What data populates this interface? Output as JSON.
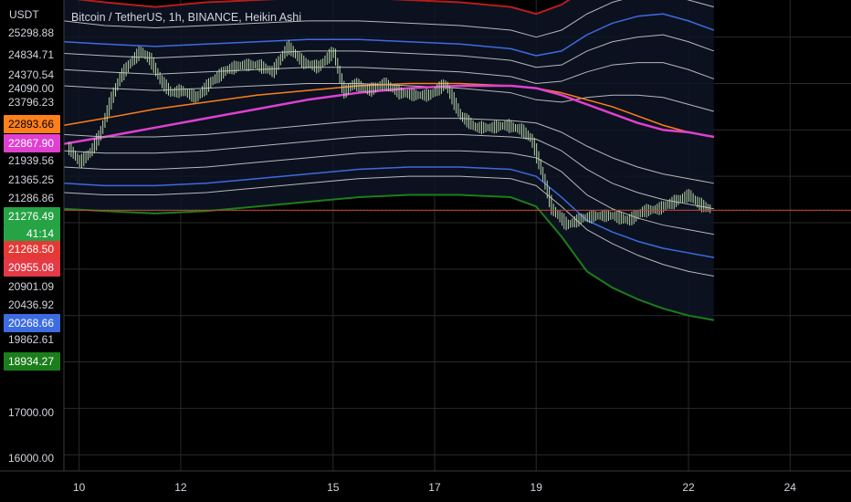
{
  "header": {
    "symbol": "Bitcoin / TetherUS",
    "interval": "1h",
    "exchange": "BINANCE",
    "chart_style": "Heikin Ashi",
    "currency": "USDT"
  },
  "colors": {
    "background": "#000000",
    "grid": "#2a2a2a",
    "axis_text": "#d1d4dc",
    "candle": "#b9d6a8",
    "band_outer_top": "#b71c1c",
    "band_blue": "#3d6be0",
    "band_gray": "#b8b8b8",
    "ma_orange": "#ff7f1a",
    "ma_magenta": "#e040d0",
    "band_outer_bottom": "#1b7e1b",
    "price_line": "#e53935",
    "last_price_bg": "#26a344"
  },
  "price_axis": {
    "plain_ticks": [
      "25298.88",
      "24834.71",
      "24370.54",
      "24090.00",
      "23796.23",
      "21939.56",
      "21365.25",
      "21286.86",
      "20901.09",
      "20436.92",
      "19862.61",
      "17000.00",
      "16000.00"
    ],
    "badges": [
      {
        "label": "22893.66",
        "color": "#ff7f1a",
        "text_color": "#000000",
        "value": 22893.66
      },
      {
        "label": "22867.90",
        "color": "#e040d0",
        "text_color": "#ffffff",
        "value": 22867.9
      },
      {
        "label": "21276.49",
        "color": "#26a344",
        "text_color": "#ffffff",
        "value": 21276.49
      },
      {
        "label": "21268.50",
        "color": "#e53935",
        "text_color": "#ffffff",
        "value": 21268.5
      },
      {
        "label": "20955.08",
        "color": "#e53945",
        "text_color": "#ffffff",
        "value": 20955.08
      },
      {
        "label": "20268.66",
        "color": "#3d6be0",
        "text_color": "#ffffff",
        "value": 20268.66
      },
      {
        "label": "18934.27",
        "color": "#1b7e1b",
        "text_color": "#ffffff",
        "value": 18934.27
      }
    ],
    "countdown": "41:14"
  },
  "time_axis": {
    "labels": [
      "10",
      "12",
      "15",
      "17",
      "19",
      "22",
      "24"
    ]
  },
  "chart_data": {
    "type": "line",
    "title": "Bitcoin / TetherUS, 1h, BINANCE, Heikin Ashi",
    "ylabel": "USDT",
    "x_unit": "days (August)",
    "xlim": [
      9.7,
      25.2
    ],
    "ylim": [
      15650,
      25800
    ],
    "last_x": 22.45,
    "price_line_value": 21268.5,
    "last_price": 21276.49,
    "price": {
      "x": [
        9.8,
        10.0,
        10.2,
        10.4,
        10.6,
        10.8,
        11.0,
        11.2,
        11.4,
        11.6,
        11.8,
        12.0,
        12.3,
        12.6,
        12.9,
        13.2,
        13.5,
        13.8,
        14.1,
        14.4,
        14.7,
        15.0,
        15.2,
        15.4,
        15.7,
        16.0,
        16.3,
        16.6,
        16.9,
        17.2,
        17.5,
        17.8,
        18.1,
        18.4,
        18.7,
        18.9,
        19.1,
        19.3,
        19.6,
        19.9,
        20.2,
        20.5,
        20.8,
        21.1,
        21.4,
        21.7,
        22.0,
        22.2,
        22.4,
        22.5
      ],
      "y": [
        22600,
        22300,
        22500,
        22900,
        23600,
        24150,
        24450,
        24700,
        24500,
        24050,
        23800,
        23850,
        23700,
        24050,
        24300,
        24400,
        24400,
        24250,
        24800,
        24450,
        24350,
        24700,
        23800,
        24000,
        23850,
        24000,
        23800,
        23750,
        23750,
        24000,
        23300,
        23050,
        23050,
        23100,
        23000,
        22800,
        22100,
        21300,
        20950,
        21100,
        21150,
        21150,
        21050,
        21250,
        21300,
        21450,
        21600,
        21400,
        21300,
        21270
      ]
    },
    "bands": {
      "x": [
        9.7,
        10.5,
        11.5,
        12.5,
        13.5,
        14.5,
        15.5,
        16.5,
        17.5,
        18.5,
        19.0,
        19.5,
        20.0,
        20.5,
        21.0,
        21.5,
        22.0,
        22.5
      ],
      "series": [
        {
          "role": "outer_top",
          "color": "#b71c1c",
          "width": 2,
          "values": [
            25850,
            25750,
            25650,
            25750,
            25800,
            25850,
            25850,
            25800,
            25750,
            25650,
            25500,
            25700,
            26050,
            26300,
            26450,
            26500,
            26350,
            26200
          ]
        },
        {
          "role": "gray",
          "color": "#b8b8b8",
          "width": 1,
          "values": [
            25350,
            25250,
            25200,
            25250,
            25300,
            25350,
            25350,
            25300,
            25250,
            25150,
            25000,
            25150,
            25500,
            25750,
            25900,
            25950,
            25800,
            25650
          ]
        },
        {
          "role": "blue",
          "color": "#3d6be0",
          "width": 1.5,
          "values": [
            24900,
            24850,
            24800,
            24850,
            24900,
            24950,
            24950,
            24900,
            24850,
            24750,
            24600,
            24700,
            25050,
            25300,
            25450,
            25500,
            25350,
            25150
          ]
        },
        {
          "role": "gray",
          "color": "#b8b8b8",
          "width": 1,
          "values": [
            24650,
            24600,
            24550,
            24600,
            24650,
            24700,
            24700,
            24650,
            24600,
            24500,
            24350,
            24400,
            24700,
            24900,
            25000,
            25050,
            24900,
            24700
          ]
        },
        {
          "role": "gray",
          "color": "#b8b8b8",
          "width": 1,
          "values": [
            24300,
            24250,
            24200,
            24250,
            24300,
            24350,
            24350,
            24300,
            24250,
            24150,
            24000,
            24050,
            24250,
            24400,
            24450,
            24450,
            24300,
            24100
          ]
        },
        {
          "role": "gray",
          "color": "#b8b8b8",
          "width": 1,
          "values": [
            23950,
            23900,
            23850,
            23900,
            23950,
            24000,
            24000,
            23950,
            23900,
            23800,
            23650,
            23600,
            23700,
            23750,
            23750,
            23700,
            23550,
            23400
          ]
        },
        {
          "role": "ma_orange",
          "color": "#ff7f1a",
          "width": 1.5,
          "values": [
            23100,
            23250,
            23450,
            23600,
            23750,
            23850,
            23950,
            24000,
            24000,
            23950,
            23900,
            23800,
            23650,
            23500,
            23300,
            23100,
            22950,
            22850
          ]
        },
        {
          "role": "ma_magenta",
          "color": "#e040d0",
          "width": 2.5,
          "values": [
            22700,
            22850,
            23050,
            23250,
            23450,
            23650,
            23800,
            23900,
            23950,
            23950,
            23900,
            23750,
            23550,
            23350,
            23150,
            23000,
            22950,
            22850
          ]
        },
        {
          "role": "gray",
          "color": "#b8b8b8",
          "width": 1,
          "values": [
            22900,
            22850,
            22850,
            22900,
            23000,
            23100,
            23200,
            23250,
            23250,
            23200,
            23150,
            22950,
            22650,
            22400,
            22200,
            22050,
            21950,
            21850
          ]
        },
        {
          "role": "gray",
          "color": "#b8b8b8",
          "width": 1,
          "values": [
            22550,
            22500,
            22500,
            22550,
            22650,
            22750,
            22850,
            22900,
            22900,
            22850,
            22800,
            22550,
            22150,
            21850,
            21650,
            21500,
            21400,
            21300
          ]
        },
        {
          "role": "gray",
          "color": "#b8b8b8",
          "width": 1,
          "values": [
            22200,
            22150,
            22150,
            22200,
            22300,
            22400,
            22500,
            22550,
            22550,
            22500,
            22400,
            22100,
            21600,
            21300,
            21100,
            20950,
            20850,
            20750
          ]
        },
        {
          "role": "blue",
          "color": "#3d6be0",
          "width": 1.5,
          "values": [
            21850,
            21800,
            21800,
            21850,
            21950,
            22050,
            22150,
            22200,
            22200,
            22150,
            22000,
            21550,
            21050,
            20800,
            20600,
            20450,
            20350,
            20250
          ]
        },
        {
          "role": "gray",
          "color": "#b8b8b8",
          "width": 1,
          "values": [
            21650,
            21600,
            21600,
            21650,
            21750,
            21850,
            21950,
            22000,
            22000,
            21950,
            21800,
            21350,
            20850,
            20550,
            20300,
            20100,
            19950,
            19850
          ]
        },
        {
          "role": "outer_bottom",
          "color": "#1b7e1b",
          "width": 2,
          "values": [
            21300,
            21250,
            21200,
            21250,
            21350,
            21450,
            21550,
            21600,
            21600,
            21550,
            21350,
            20700,
            19950,
            19600,
            19350,
            19150,
            19000,
            18900
          ]
        }
      ]
    }
  }
}
